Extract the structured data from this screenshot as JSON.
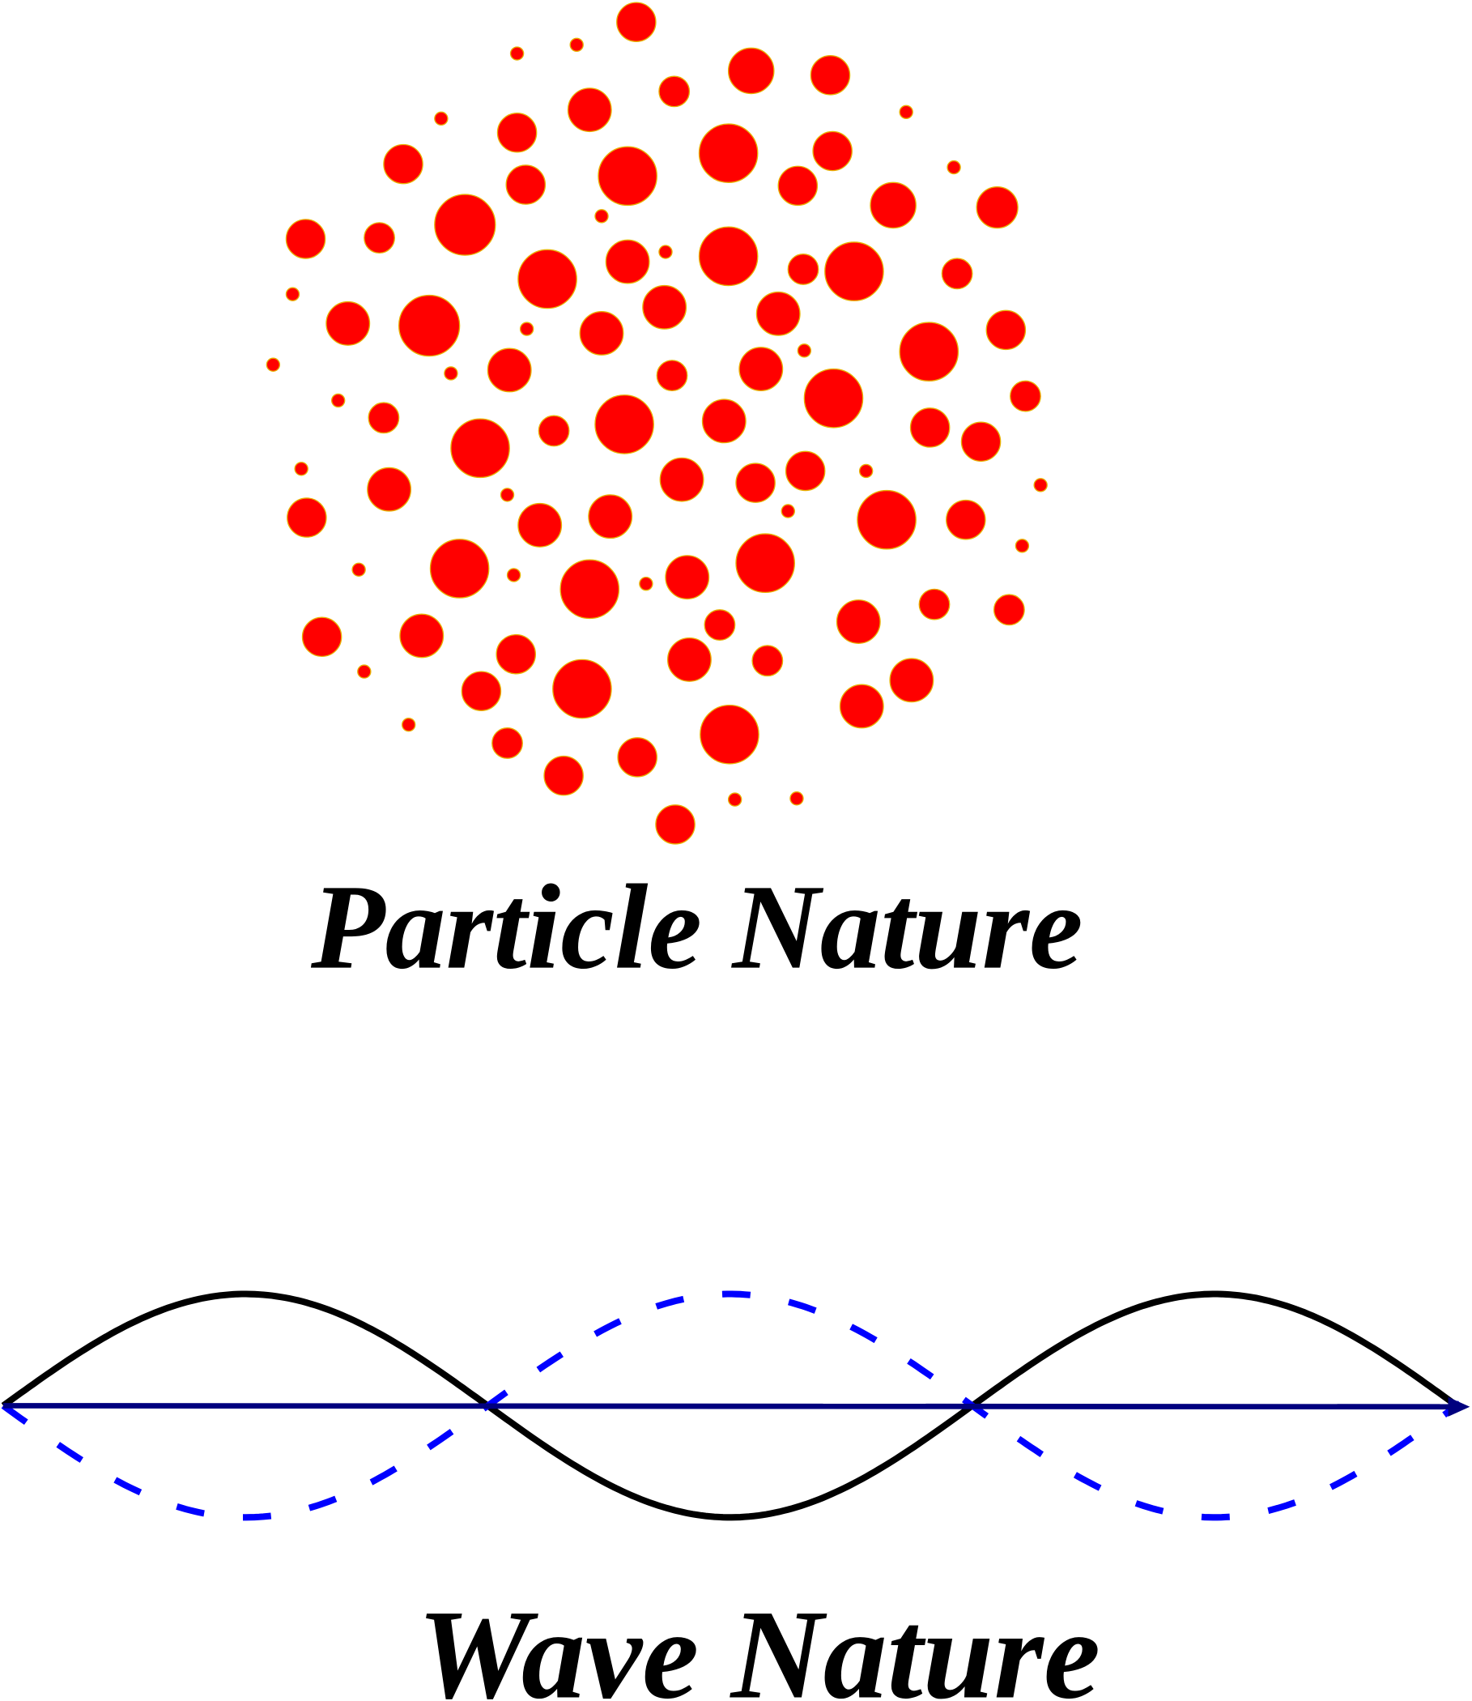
{
  "particle": {
    "label": "Particle Nature"
  },
  "wave": {
    "label": "Wave Nature"
  }
}
